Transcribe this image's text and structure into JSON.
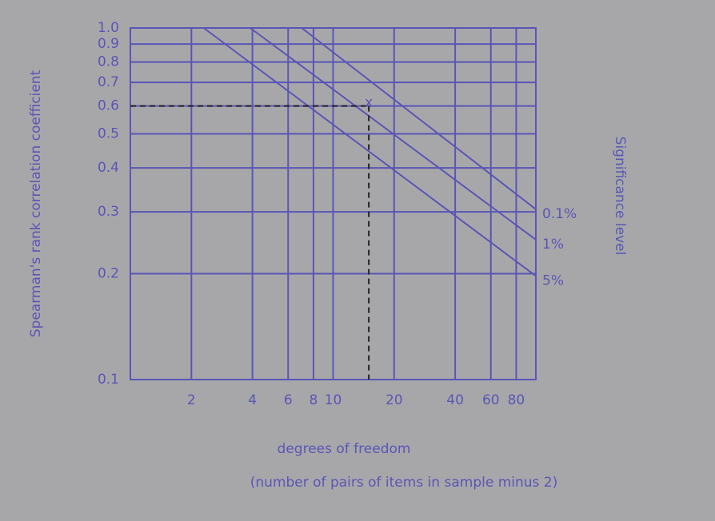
{
  "chart_data": {
    "type": "line",
    "x_label": "degrees of freedom",
    "x_sublabel": "(number of pairs of items in sample minus 2)",
    "y_label": "Spearman's rank correlation coefficient",
    "y2_label": "Significance level",
    "log_x": true,
    "log_y": true,
    "grid": true,
    "xlim": [
      1,
      100
    ],
    "ylim": [
      0.1,
      1
    ],
    "xticks": [
      2,
      4,
      6,
      8,
      10,
      20,
      40,
      60,
      80
    ],
    "yticks": [
      0.1,
      0.2,
      0.3,
      0.4,
      0.5,
      0.6,
      0.7,
      0.8,
      0.9,
      {
        "value": 1,
        "label": "1.0"
      }
    ],
    "series": [
      {
        "name": "0.1%",
        "color": "#5b55b5",
        "x": [
          7,
          100
        ],
        "values": [
          1,
          0.305
        ]
      },
      {
        "name": "1%",
        "color": "#5b55b5",
        "x": [
          3.9,
          100
        ],
        "values": [
          1,
          0.25
        ]
      },
      {
        "name": "5%",
        "color": "#5b55b5",
        "x": [
          2.3,
          100
        ],
        "values": [
          1,
          0.197
        ]
      }
    ],
    "marker": {
      "x": 15,
      "y": 0.6,
      "label": "x"
    }
  }
}
